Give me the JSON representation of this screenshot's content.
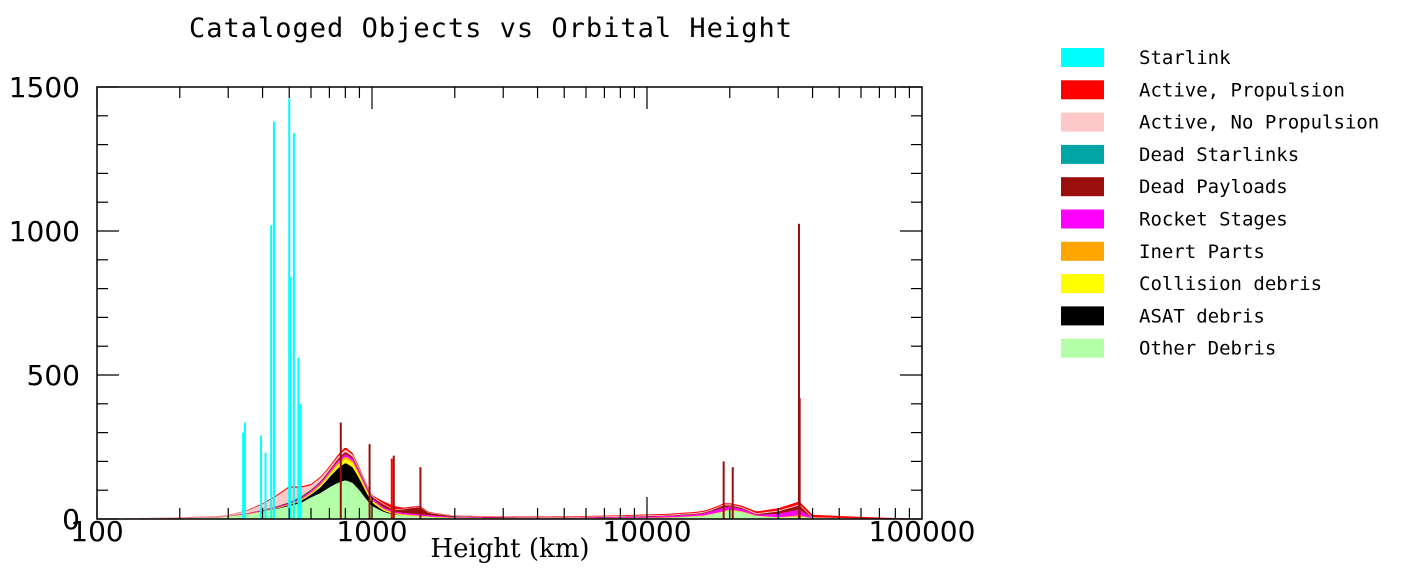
{
  "chart_data": {
    "type": "area",
    "title": "Cataloged Objects vs Orbital Height",
    "xlabel": "Height (km)",
    "ylabel": "",
    "xscale": "log",
    "xlim": [
      100,
      100000
    ],
    "ylim": [
      0,
      1500
    ],
    "x_ticks": [
      "100",
      "1000",
      "10000",
      "100000"
    ],
    "y_ticks": [
      "0",
      "500",
      "1000",
      "1500"
    ],
    "legend_position": "right",
    "stacked": true,
    "series": [
      {
        "name": "Other Debris",
        "color": "#b3ffa8",
        "points": [
          [
            100,
            0
          ],
          [
            200,
            2
          ],
          [
            280,
            5
          ],
          [
            350,
            15
          ],
          [
            400,
            25
          ],
          [
            450,
            35
          ],
          [
            500,
            45
          ],
          [
            550,
            55
          ],
          [
            600,
            75
          ],
          [
            650,
            90
          ],
          [
            700,
            110
          ],
          [
            750,
            125
          ],
          [
            800,
            135
          ],
          [
            850,
            125
          ],
          [
            900,
            100
          ],
          [
            950,
            70
          ],
          [
            1000,
            45
          ],
          [
            1100,
            25
          ],
          [
            1200,
            15
          ],
          [
            1300,
            12
          ],
          [
            1400,
            10
          ],
          [
            1500,
            8
          ],
          [
            1700,
            5
          ],
          [
            2000,
            3
          ],
          [
            3000,
            2
          ],
          [
            5000,
            2
          ],
          [
            8000,
            2
          ],
          [
            12000,
            4
          ],
          [
            16000,
            10
          ],
          [
            18000,
            20
          ],
          [
            20000,
            30
          ],
          [
            22000,
            25
          ],
          [
            25000,
            10
          ],
          [
            30000,
            5
          ],
          [
            35800,
            8
          ],
          [
            40000,
            3
          ],
          [
            60000,
            1
          ],
          [
            100000,
            0
          ]
        ]
      },
      {
        "name": "ASAT debris",
        "color": "#000000",
        "points": [
          [
            100,
            0
          ],
          [
            400,
            0
          ],
          [
            500,
            3
          ],
          [
            600,
            10
          ],
          [
            650,
            20
          ],
          [
            700,
            35
          ],
          [
            750,
            50
          ],
          [
            800,
            60
          ],
          [
            850,
            55
          ],
          [
            900,
            40
          ],
          [
            950,
            25
          ],
          [
            1000,
            12
          ],
          [
            1100,
            4
          ],
          [
            1300,
            0
          ],
          [
            100000,
            0
          ]
        ]
      },
      {
        "name": "Collision debris",
        "color": "#ffff00",
        "points": [
          [
            100,
            0
          ],
          [
            500,
            0
          ],
          [
            600,
            3
          ],
          [
            700,
            8
          ],
          [
            750,
            12
          ],
          [
            800,
            15
          ],
          [
            850,
            15
          ],
          [
            900,
            10
          ],
          [
            1000,
            5
          ],
          [
            1200,
            2
          ],
          [
            1500,
            1
          ],
          [
            2000,
            0
          ],
          [
            100000,
            0
          ]
        ]
      },
      {
        "name": "Inert Parts",
        "color": "#ffa500",
        "points": [
          [
            100,
            0
          ],
          [
            300,
            1
          ],
          [
            500,
            3
          ],
          [
            700,
            6
          ],
          [
            800,
            8
          ],
          [
            900,
            6
          ],
          [
            1000,
            4
          ],
          [
            1500,
            2
          ],
          [
            3000,
            1
          ],
          [
            5000,
            1
          ],
          [
            18000,
            2
          ],
          [
            20000,
            3
          ],
          [
            30000,
            1
          ],
          [
            35800,
            5
          ],
          [
            40000,
            0
          ],
          [
            100000,
            0
          ]
        ]
      },
      {
        "name": "Rocket Stages",
        "color": "#ff00ff",
        "points": [
          [
            100,
            0
          ],
          [
            300,
            1
          ],
          [
            500,
            3
          ],
          [
            700,
            6
          ],
          [
            800,
            8
          ],
          [
            900,
            7
          ],
          [
            1000,
            6
          ],
          [
            1200,
            4
          ],
          [
            1500,
            5
          ],
          [
            2000,
            2
          ],
          [
            5000,
            1
          ],
          [
            15000,
            5
          ],
          [
            19000,
            12
          ],
          [
            20000,
            10
          ],
          [
            22000,
            8
          ],
          [
            25000,
            3
          ],
          [
            35800,
            20
          ],
          [
            40000,
            0
          ],
          [
            100000,
            0
          ]
        ]
      },
      {
        "name": "Dead Payloads",
        "color": "#9b0e0e",
        "points": [
          [
            100,
            0
          ],
          [
            300,
            1
          ],
          [
            500,
            3
          ],
          [
            700,
            5
          ],
          [
            800,
            8
          ],
          [
            900,
            6
          ],
          [
            1000,
            5
          ],
          [
            1100,
            10
          ],
          [
            1200,
            5
          ],
          [
            1400,
            20
          ],
          [
            1500,
            25
          ],
          [
            1600,
            8
          ],
          [
            2000,
            3
          ],
          [
            5000,
            1
          ],
          [
            17000,
            3
          ],
          [
            19000,
            8
          ],
          [
            20000,
            5
          ],
          [
            25000,
            2
          ],
          [
            35800,
            15
          ],
          [
            40000,
            0
          ],
          [
            100000,
            0
          ]
        ]
      },
      {
        "name": "Dead Starlinks",
        "color": "#00a6a6",
        "points": [
          [
            100,
            0
          ],
          [
            450,
            0
          ],
          [
            500,
            2
          ],
          [
            550,
            4
          ],
          [
            600,
            1
          ],
          [
            700,
            0
          ],
          [
            100000,
            0
          ]
        ]
      },
      {
        "name": "Active, No Propulsion",
        "color": "#ffc8c8",
        "points": [
          [
            100,
            0
          ],
          [
            300,
            2
          ],
          [
            350,
            8
          ],
          [
            400,
            20
          ],
          [
            450,
            35
          ],
          [
            500,
            50
          ],
          [
            550,
            30
          ],
          [
            600,
            15
          ],
          [
            700,
            8
          ],
          [
            800,
            8
          ],
          [
            900,
            5
          ],
          [
            1000,
            3
          ],
          [
            1500,
            1
          ],
          [
            20000,
            3
          ],
          [
            35800,
            3
          ],
          [
            100000,
            0
          ]
        ]
      },
      {
        "name": "Active, Propulsion",
        "color": "#ff0000",
        "points": [
          [
            100,
            0
          ],
          [
            300,
            1
          ],
          [
            400,
            3
          ],
          [
            500,
            5
          ],
          [
            600,
            4
          ],
          [
            700,
            5
          ],
          [
            800,
            8
          ],
          [
            900,
            5
          ],
          [
            1000,
            3
          ],
          [
            1100,
            8
          ],
          [
            1200,
            12
          ],
          [
            1300,
            4
          ],
          [
            1500,
            3
          ],
          [
            2000,
            1
          ],
          [
            20000,
            4
          ],
          [
            35800,
            10
          ],
          [
            100000,
            0
          ]
        ]
      },
      {
        "name": "Starlink",
        "color": "#00ffff",
        "points": [
          [
            100,
            0
          ],
          [
            100000,
            0
          ]
        ]
      }
    ],
    "spikes": [
      {
        "series": "Starlink",
        "x": 340,
        "y": 300
      },
      {
        "series": "Starlink",
        "x": 345,
        "y": 335
      },
      {
        "series": "Starlink",
        "x": 395,
        "y": 290
      },
      {
        "series": "Starlink",
        "x": 410,
        "y": 230
      },
      {
        "series": "Starlink",
        "x": 430,
        "y": 1020
      },
      {
        "series": "Starlink",
        "x": 440,
        "y": 1380
      },
      {
        "series": "Starlink",
        "x": 500,
        "y": 1460
      },
      {
        "series": "Starlink",
        "x": 505,
        "y": 840
      },
      {
        "series": "Starlink",
        "x": 520,
        "y": 1340
      },
      {
        "series": "Starlink",
        "x": 540,
        "y": 560
      },
      {
        "series": "Starlink",
        "x": 550,
        "y": 400
      },
      {
        "series": "Dead Payloads",
        "x": 770,
        "y": 335
      },
      {
        "series": "Dead Payloads",
        "x": 980,
        "y": 260
      },
      {
        "series": "Dead Payloads",
        "x": 1200,
        "y": 220
      },
      {
        "series": "Dead Payloads",
        "x": 1500,
        "y": 180
      },
      {
        "series": "Active, Propulsion",
        "x": 1180,
        "y": 210
      },
      {
        "series": "Dead Payloads",
        "x": 19000,
        "y": 200
      },
      {
        "series": "Dead Payloads",
        "x": 20500,
        "y": 180
      },
      {
        "series": "Dead Payloads",
        "x": 35700,
        "y": 1025
      },
      {
        "series": "Dead Payloads",
        "x": 35900,
        "y": 420
      }
    ]
  },
  "legend": {
    "items": [
      {
        "label": "Starlink",
        "color": "#00ffff"
      },
      {
        "label": "Active, Propulsion",
        "color": "#ff0000"
      },
      {
        "label": "Active, No Propulsion",
        "color": "#ffc8c8"
      },
      {
        "label": "Dead Starlinks",
        "color": "#00a6a6"
      },
      {
        "label": "Dead Payloads",
        "color": "#9b0e0e"
      },
      {
        "label": "Rocket Stages",
        "color": "#ff00ff"
      },
      {
        "label": "Inert Parts",
        "color": "#ffa500"
      },
      {
        "label": "Collision debris",
        "color": "#ffff00"
      },
      {
        "label": "ASAT debris",
        "color": "#000000"
      },
      {
        "label": "Other Debris",
        "color": "#b3ffa8"
      }
    ]
  }
}
